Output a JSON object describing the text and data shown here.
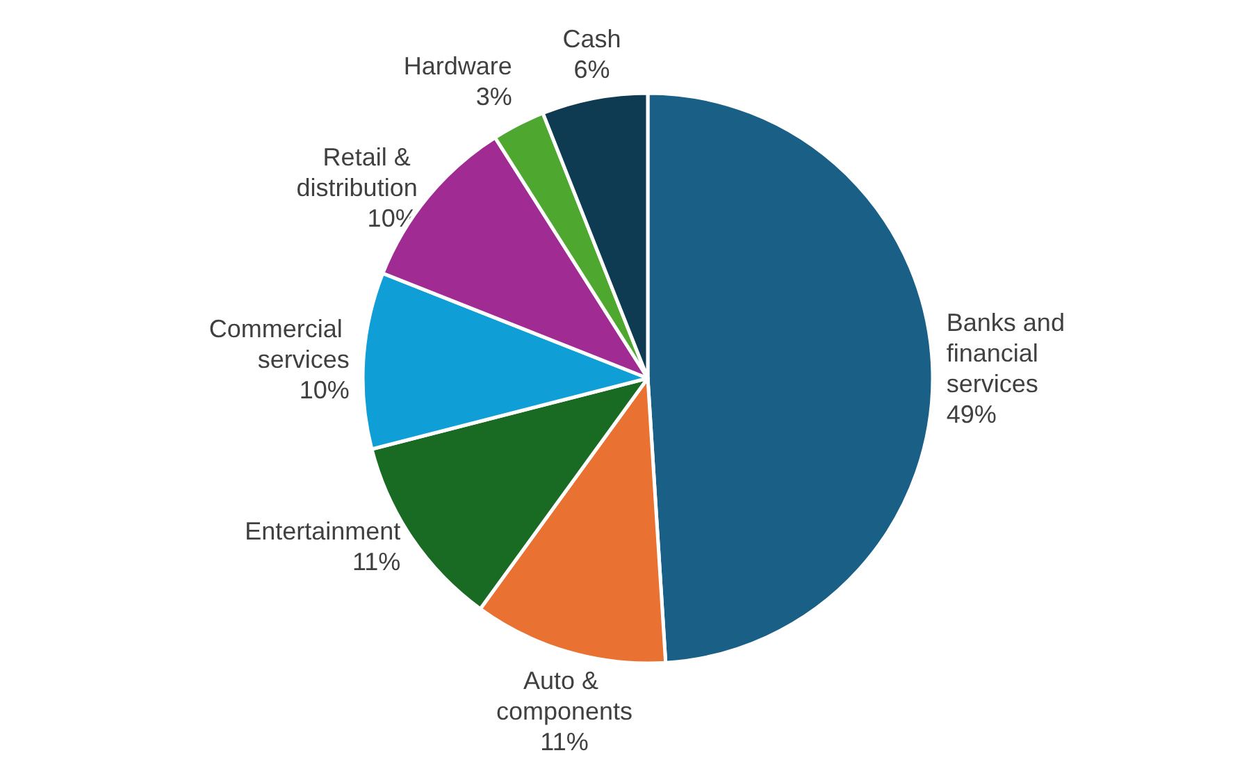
{
  "chart_data": {
    "type": "pie",
    "categories": [
      "Banks and financial services",
      "Auto & components",
      "Entertainment",
      "Commercial services",
      "Retail & distribution",
      "Hardware",
      "Cash"
    ],
    "values": [
      49,
      11,
      11,
      10,
      10,
      3,
      6
    ],
    "colors": [
      "#1a5f85",
      "#e97132",
      "#196b24",
      "#0f9ed5",
      "#a02b93",
      "#4ea72e",
      "#0e3a52"
    ],
    "value_labels": [
      "49%",
      "11%",
      "11%",
      "10%",
      "10%",
      "3%",
      "6%"
    ],
    "legend": false
  }
}
